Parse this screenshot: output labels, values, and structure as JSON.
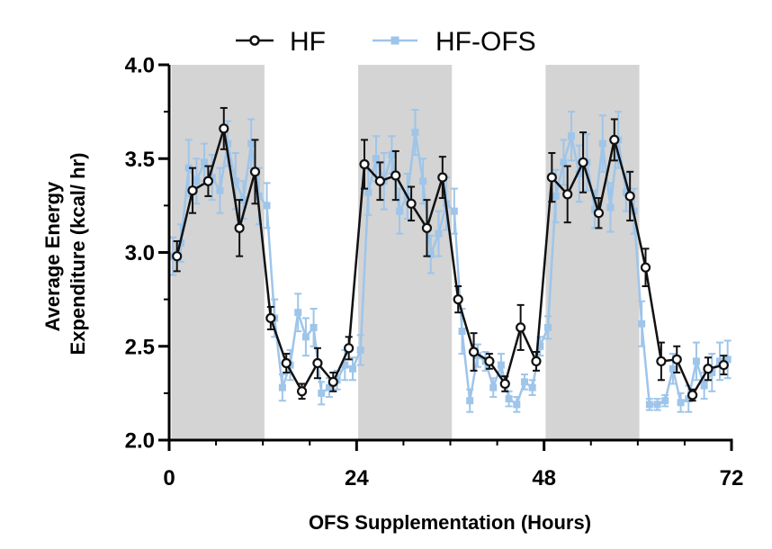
{
  "chart_data": {
    "type": "line",
    "xlabel": "OFS Supplementation (Hours)",
    "ylabel": [
      "Average Energy",
      "Expenditure (kcal/ hr)"
    ],
    "xlim": [
      0,
      72
    ],
    "ylim": [
      2.0,
      4.0
    ],
    "x_ticks": [
      0,
      24,
      48,
      72
    ],
    "y_ticks": [
      "2.0",
      "2.5",
      "3.0",
      "3.5",
      "4.0"
    ],
    "dark_periods": [
      [
        0.3,
        12.2
      ],
      [
        24.2,
        36.2
      ],
      [
        48.2,
        60.2
      ]
    ],
    "legend_position": "top",
    "series": [
      {
        "name": "HF",
        "color": "#111111",
        "marker": "open-circle",
        "x": [
          1,
          3,
          5,
          7,
          9,
          11,
          13,
          15,
          17,
          19,
          21,
          23,
          25,
          27,
          29,
          31,
          33,
          35,
          37,
          39,
          41,
          43,
          45,
          47,
          49,
          51,
          53,
          55,
          57,
          59,
          61,
          63,
          65,
          67,
          69,
          71
        ],
        "y": [
          2.98,
          3.33,
          3.38,
          3.66,
          3.13,
          3.43,
          2.65,
          2.41,
          2.26,
          2.41,
          2.31,
          2.49,
          3.47,
          3.38,
          3.41,
          3.26,
          3.13,
          3.4,
          2.75,
          2.47,
          2.42,
          2.3,
          2.6,
          2.42,
          3.4,
          3.31,
          3.48,
          3.21,
          3.6,
          3.3,
          2.92,
          2.42,
          2.43,
          2.24,
          2.38,
          2.4
        ],
        "err": [
          0.08,
          0.12,
          0.08,
          0.11,
          0.15,
          0.17,
          0.06,
          0.05,
          0.04,
          0.08,
          0.05,
          0.06,
          0.13,
          0.1,
          0.13,
          0.09,
          0.15,
          0.11,
          0.07,
          0.1,
          0.04,
          0.04,
          0.12,
          0.05,
          0.13,
          0.15,
          0.16,
          0.08,
          0.11,
          0.13,
          0.1,
          0.1,
          0.07,
          0.03,
          0.06,
          0.05
        ]
      },
      {
        "name": "HF-OFS",
        "color": "#9ec5ea",
        "marker": "filled-square",
        "x": [
          0.5,
          1.5,
          2.5,
          3.5,
          4.5,
          5.5,
          6.5,
          7.5,
          8.5,
          9.5,
          10.5,
          11.5,
          12.5,
          13.5,
          14.5,
          15.5,
          16.5,
          17.5,
          18.5,
          19.5,
          20.5,
          21.5,
          22.5,
          23.5,
          24.5,
          25.5,
          26.5,
          27.5,
          28.5,
          29.5,
          30.5,
          31.5,
          32.5,
          33.5,
          34.5,
          35.5,
          36.5,
          37.5,
          38.5,
          39.5,
          40.5,
          41.5,
          42.5,
          43.5,
          44.5,
          45.5,
          46.5,
          47.5,
          48.5,
          49.5,
          50.5,
          51.5,
          52.5,
          53.5,
          54.5,
          55.5,
          56.5,
          57.5,
          58.5,
          59.5,
          60.5,
          61.5,
          62.5,
          63.5,
          64.5,
          65.5,
          66.5,
          67.5,
          68.5,
          69.5,
          70.5,
          71.5
        ],
        "y": [
          2.98,
          3.05,
          3.45,
          3.38,
          3.48,
          3.4,
          3.33,
          3.58,
          3.38,
          3.28,
          3.58,
          3.3,
          3.25,
          2.65,
          2.28,
          2.4,
          2.68,
          2.55,
          2.6,
          2.25,
          2.28,
          2.32,
          2.4,
          2.38,
          2.48,
          3.32,
          3.5,
          3.38,
          3.52,
          3.22,
          3.3,
          3.64,
          3.38,
          2.99,
          3.1,
          3.26,
          3.22,
          2.58,
          2.21,
          2.45,
          2.42,
          2.28,
          2.4,
          2.22,
          2.19,
          2.31,
          2.28,
          2.5,
          2.6,
          3.3,
          3.48,
          3.62,
          3.42,
          3.48,
          3.23,
          3.58,
          3.24,
          3.6,
          3.32,
          3.22,
          2.62,
          2.19,
          2.19,
          2.21,
          2.38,
          2.2,
          2.22,
          2.42,
          2.29,
          2.36,
          2.42,
          2.43
        ],
        "err": [
          0.1,
          0.1,
          0.15,
          0.12,
          0.1,
          0.12,
          0.12,
          0.12,
          0.15,
          0.1,
          0.13,
          0.15,
          0.12,
          0.1,
          0.07,
          0.08,
          0.1,
          0.1,
          0.1,
          0.06,
          0.05,
          0.05,
          0.08,
          0.06,
          0.08,
          0.12,
          0.12,
          0.15,
          0.1,
          0.12,
          0.12,
          0.12,
          0.12,
          0.1,
          0.12,
          0.14,
          0.12,
          0.12,
          0.06,
          0.06,
          0.05,
          0.05,
          0.06,
          0.04,
          0.04,
          0.04,
          0.04,
          0.05,
          0.06,
          0.14,
          0.12,
          0.13,
          0.15,
          0.15,
          0.1,
          0.15,
          0.13,
          0.15,
          0.1,
          0.12,
          0.12,
          0.03,
          0.03,
          0.03,
          0.08,
          0.05,
          0.07,
          0.1,
          0.07,
          0.1,
          0.1,
          0.1
        ]
      }
    ]
  }
}
